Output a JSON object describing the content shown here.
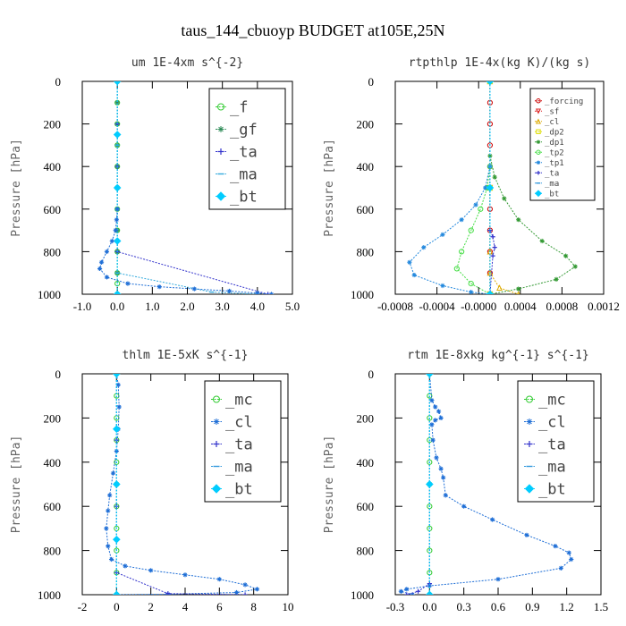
{
  "figure_title": "taus_144_cbuoyp  BUDGET at105E,25N",
  "chart_data": [
    {
      "type": "line",
      "title": "um  1E-4xm s^{-2}",
      "ylabel": "Pressure [hPa]",
      "xlim": [
        -1.0,
        5.0
      ],
      "ylim": [
        1000,
        0
      ],
      "y_inverted": true,
      "xticks": [
        "-1.0",
        "0.0",
        "1.0",
        "2.0",
        "3.0",
        "4.0",
        "5.0"
      ],
      "yticks": [
        "0",
        "200",
        "400",
        "600",
        "800",
        "1000"
      ],
      "legend_placement": "top-right",
      "legend_font": "large",
      "series": [
        {
          "name": "_f",
          "color": "#33cc33",
          "marker": "circle",
          "x": [
            0,
            0,
            0,
            0,
            0,
            0,
            0,
            0,
            0,
            0,
            0,
            0
          ],
          "y": [
            0,
            100,
            200,
            300,
            400,
            500,
            600,
            700,
            800,
            900,
            950,
            1000
          ]
        },
        {
          "name": "_gf",
          "color": "#2e8b57",
          "marker": "star",
          "x": [
            0,
            0,
            0,
            0,
            0,
            0,
            0,
            0,
            0,
            0,
            0
          ],
          "y": [
            0,
            100,
            200,
            300,
            400,
            500,
            600,
            700,
            800,
            900,
            1000
          ]
        },
        {
          "name": "_ta",
          "color": "#3333cc",
          "marker": "plus",
          "x": [
            0,
            0,
            0,
            0,
            0,
            4.3
          ],
          "y": [
            0,
            200,
            400,
            600,
            800,
            1000
          ]
        },
        {
          "name": "_ma",
          "color": "#33aadd",
          "marker": "dash",
          "x": [
            0,
            0,
            0,
            0,
            2.7,
            4.0
          ],
          "y": [
            0,
            300,
            600,
            900,
            990,
            1000
          ]
        },
        {
          "name": "_bt",
          "color": "#00ccff",
          "marker": "diamond",
          "x": [
            0,
            0,
            0,
            0,
            0
          ],
          "y": [
            0,
            250,
            500,
            750,
            1000
          ]
        },
        {
          "name": "",
          "color": "#1e6ed6",
          "marker": "star",
          "x": [
            0,
            -0.02,
            -0.05,
            -0.15,
            -0.3,
            -0.45,
            -0.5,
            -0.3,
            0.3,
            1.2,
            2.2,
            3.2,
            4.0,
            4.4
          ],
          "y": [
            600,
            650,
            700,
            750,
            800,
            850,
            880,
            920,
            950,
            965,
            975,
            985,
            995,
            1000
          ]
        }
      ]
    },
    {
      "type": "line",
      "title": "rtpthlp  1E-4x(kg K)/(kg s)",
      "ylabel": "Pressure [hPa]",
      "xlim": [
        -0.001,
        0.0012
      ],
      "ylim": [
        1000,
        0
      ],
      "y_inverted": true,
      "xticks": [
        "-0.0008",
        "-0.0004",
        "-0.0000",
        "0.0004",
        "0.0008",
        "0.0012"
      ],
      "yticks": [
        "0",
        "200",
        "400",
        "600",
        "800",
        "1000"
      ],
      "legend_placement": "top-right",
      "legend_font": "small",
      "series": [
        {
          "name": "_forcing",
          "color": "#cc0000",
          "marker": "circle",
          "x": [
            0,
            0,
            0,
            0,
            0,
            0,
            0,
            0,
            0,
            0,
            0
          ],
          "y": [
            0,
            100,
            200,
            300,
            400,
            500,
            600,
            700,
            800,
            900,
            1000
          ]
        },
        {
          "name": "_sf",
          "color": "#dd2222",
          "marker": "triangle-down",
          "x": [
            0,
            0,
            0
          ],
          "y": [
            0,
            500,
            1000
          ]
        },
        {
          "name": "_cl",
          "color": "#ddaa00",
          "marker": "triangle-up",
          "x": [
            0,
            0,
            0,
            0,
            0.0001,
            0.0003
          ],
          "y": [
            0,
            500,
            800,
            900,
            970,
            1000
          ]
        },
        {
          "name": "_dp2",
          "color": "#dddd00",
          "marker": "square",
          "x": [
            0,
            0,
            0
          ],
          "y": [
            0,
            500,
            1000
          ]
        },
        {
          "name": "_dp1",
          "color": "#339933",
          "marker": "star",
          "x": [
            0,
            5e-05,
            0.00015,
            0.0003,
            0.00055,
            0.0008,
            0.0009,
            0.0007,
            0.0003,
            0
          ],
          "y": [
            350,
            450,
            550,
            650,
            750,
            820,
            870,
            930,
            975,
            1000
          ]
        },
        {
          "name": "_tp2",
          "color": "#44dd44",
          "marker": "circle",
          "x": [
            0,
            -3e-05,
            -0.0001,
            -0.0002,
            -0.0003,
            -0.00035,
            -0.0002,
            0
          ],
          "y": [
            400,
            500,
            600,
            700,
            800,
            880,
            950,
            1000
          ]
        },
        {
          "name": "_tp1",
          "color": "#2288dd",
          "marker": "star",
          "x": [
            0,
            -5e-05,
            -0.00015,
            -0.0003,
            -0.0005,
            -0.0007,
            -0.00085,
            -0.0008,
            -0.0005,
            -0.0002,
            0
          ],
          "y": [
            400,
            500,
            580,
            650,
            720,
            780,
            850,
            910,
            960,
            990,
            1000
          ]
        },
        {
          "name": "_ta",
          "color": "#3333cc",
          "marker": "plus",
          "x": [
            0,
            0,
            3e-05,
            5e-05,
            3e-05,
            0
          ],
          "y": [
            0,
            700,
            730,
            780,
            820,
            1000
          ]
        },
        {
          "name": "_ma",
          "color": "#3399dd",
          "marker": "dash",
          "x": [
            0,
            0,
            0
          ],
          "y": [
            0,
            500,
            1000
          ]
        },
        {
          "name": "_bt",
          "color": "#00ccff",
          "marker": "diamond",
          "x": [
            0,
            0,
            0
          ],
          "y": [
            0,
            500,
            1000
          ]
        }
      ]
    },
    {
      "type": "line",
      "title": "thlm  1E-5xK s^{-1}",
      "ylabel": "Pressure [hPa]",
      "xlim": [
        -2,
        10
      ],
      "ylim": [
        1000,
        0
      ],
      "y_inverted": true,
      "xticks": [
        "-2",
        "0",
        "2",
        "4",
        "6",
        "8",
        "10"
      ],
      "yticks": [
        "0",
        "200",
        "400",
        "600",
        "800",
        "1000"
      ],
      "legend_placement": "top-right",
      "legend_font": "large",
      "series": [
        {
          "name": "_mc",
          "color": "#33cc33",
          "marker": "circle",
          "x": [
            0,
            0,
            0,
            0,
            0,
            0,
            0,
            0,
            0,
            0,
            0
          ],
          "y": [
            0,
            100,
            200,
            300,
            400,
            500,
            600,
            700,
            800,
            900,
            1000
          ]
        },
        {
          "name": "_cl",
          "color": "#1e6ed6",
          "marker": "star",
          "x": [
            0,
            0.1,
            0.15,
            0.1,
            0,
            -0.2,
            -0.4,
            -0.5,
            -0.6,
            -0.5,
            -0.3,
            0.5,
            2.0,
            4.0,
            6.0,
            7.5,
            8.2,
            7.0,
            3.0,
            0
          ],
          "y": [
            0,
            50,
            150,
            250,
            350,
            450,
            550,
            620,
            700,
            780,
            840,
            870,
            890,
            910,
            930,
            955,
            975,
            990,
            998,
            1000
          ]
        },
        {
          "name": "_ta",
          "color": "#3333cc",
          "marker": "plus",
          "x": [
            0,
            0,
            0,
            0,
            3.0,
            7.5
          ],
          "y": [
            0,
            300,
            600,
            900,
            995,
            1000
          ]
        },
        {
          "name": "_ma",
          "color": "#3399dd",
          "marker": "dash",
          "x": [
            0,
            0,
            0
          ],
          "y": [
            0,
            500,
            1000
          ]
        },
        {
          "name": "_bt",
          "color": "#00ccff",
          "marker": "diamond",
          "x": [
            0,
            0,
            0,
            0,
            0
          ],
          "y": [
            0,
            250,
            500,
            750,
            1000
          ]
        }
      ]
    },
    {
      "type": "line",
      "title": "rtm  1E-8xkg kg^{-1} s^{-1}",
      "ylabel": "Pressure [hPa]",
      "xlim": [
        -0.3,
        1.5
      ],
      "ylim": [
        1000,
        0
      ],
      "y_inverted": true,
      "xticks": [
        "-0.3",
        "0.0",
        "0.3",
        "0.6",
        "0.9",
        "1.2",
        "1.5"
      ],
      "yticks": [
        "0",
        "200",
        "400",
        "600",
        "800",
        "1000"
      ],
      "legend_placement": "top-right",
      "legend_font": "large",
      "series": [
        {
          "name": "_mc",
          "color": "#33cc33",
          "marker": "circle",
          "x": [
            0,
            0,
            0,
            0,
            0,
            0,
            0,
            0,
            0,
            0,
            0
          ],
          "y": [
            0,
            100,
            200,
            300,
            400,
            500,
            600,
            700,
            800,
            900,
            1000
          ]
        },
        {
          "name": "_cl",
          "color": "#1e6ed6",
          "marker": "star",
          "x": [
            0,
            0.02,
            0.05,
            0.08,
            0.1,
            0.05,
            0.02,
            0.03,
            0.06,
            0.1,
            0.12,
            0.14,
            0.3,
            0.55,
            0.85,
            1.1,
            1.22,
            1.24,
            1.15,
            0.6,
            0,
            -0.2,
            -0.25,
            -0.15
          ],
          "y": [
            0,
            120,
            150,
            170,
            200,
            210,
            230,
            300,
            380,
            430,
            470,
            550,
            600,
            660,
            730,
            780,
            810,
            840,
            880,
            930,
            960,
            975,
            985,
            1000
          ]
        },
        {
          "name": "_ta",
          "color": "#3333cc",
          "marker": "plus",
          "x": [
            0,
            0,
            0,
            -0.1,
            -0.2
          ],
          "y": [
            0,
            500,
            950,
            985,
            1000
          ]
        },
        {
          "name": "_ma",
          "color": "#3399dd",
          "marker": "dash",
          "x": [
            0,
            0,
            0
          ],
          "y": [
            0,
            500,
            1000
          ]
        },
        {
          "name": "_bt",
          "color": "#00ccff",
          "marker": "diamond",
          "x": [
            0,
            0,
            0
          ],
          "y": [
            0,
            500,
            1000
          ]
        }
      ]
    }
  ]
}
